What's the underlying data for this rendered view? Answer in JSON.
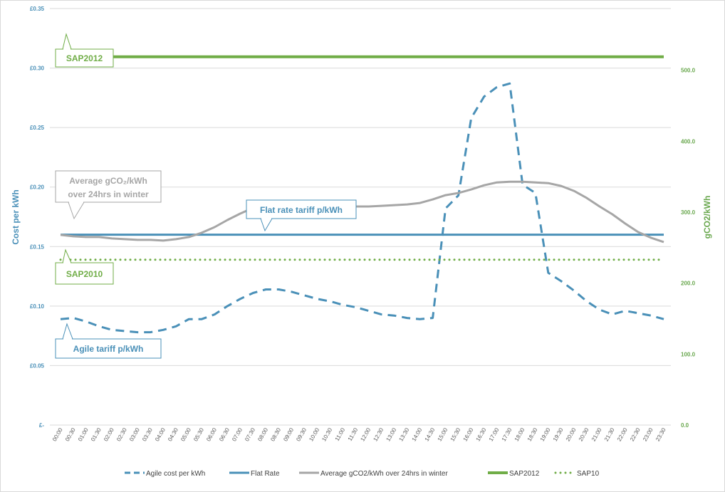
{
  "chart_data": {
    "type": "line",
    "title": "",
    "ylabel": "Cost per kWh",
    "y2label": "gCO2/kWh",
    "ylim": [
      0,
      0.35
    ],
    "y2lim": [
      0,
      587
    ],
    "y_ticks": [
      "£-",
      "£0.05",
      "£0.10",
      "£0.15",
      "£0.20",
      "£0.25",
      "£0.30",
      "£0.35"
    ],
    "y2_ticks": [
      "0.0",
      "100.0",
      "200.0",
      "300.0",
      "400.0",
      "500.0"
    ],
    "x": [
      "00:00",
      "00:30",
      "01:00",
      "01:30",
      "02:00",
      "02:30",
      "03:00",
      "03:30",
      "04:00",
      "04:30",
      "05:00",
      "05:30",
      "06:00",
      "06:30",
      "07:00",
      "07:30",
      "08:00",
      "08:30",
      "09:00",
      "09:30",
      "10:00",
      "10:30",
      "11:00",
      "11:30",
      "12:00",
      "12:30",
      "13:00",
      "13:30",
      "14:00",
      "14:30",
      "15:00",
      "15:30",
      "16:00",
      "16:30",
      "17:00",
      "17:30",
      "18:00",
      "18:30",
      "19:00",
      "19:30",
      "20:00",
      "20:30",
      "21:00",
      "21:30",
      "22:00",
      "22:30",
      "23:00",
      "23:30"
    ],
    "series": [
      {
        "name": "Agile cost per kWh",
        "axis": "left",
        "color": "#4a90b8",
        "style": "dashed",
        "values": [
          0.089,
          0.09,
          0.087,
          0.083,
          0.08,
          0.079,
          0.078,
          0.078,
          0.08,
          0.083,
          0.089,
          0.089,
          0.093,
          0.1,
          0.106,
          0.111,
          0.114,
          0.114,
          0.112,
          0.109,
          0.106,
          0.104,
          0.101,
          0.099,
          0.096,
          0.093,
          0.092,
          0.09,
          0.089,
          0.09,
          0.182,
          0.193,
          0.258,
          0.276,
          0.284,
          0.287,
          0.202,
          0.195,
          0.128,
          0.121,
          0.113,
          0.104,
          0.097,
          0.093,
          0.096,
          0.094,
          0.092,
          0.089
        ]
      },
      {
        "name": "Flat Rate",
        "axis": "left",
        "color": "#4a90b8",
        "style": "solid",
        "values": [
          0.16,
          0.16,
          0.16,
          0.16,
          0.16,
          0.16,
          0.16,
          0.16,
          0.16,
          0.16,
          0.16,
          0.16,
          0.16,
          0.16,
          0.16,
          0.16,
          0.16,
          0.16,
          0.16,
          0.16,
          0.16,
          0.16,
          0.16,
          0.16,
          0.16,
          0.16,
          0.16,
          0.16,
          0.16,
          0.16,
          0.16,
          0.16,
          0.16,
          0.16,
          0.16,
          0.16,
          0.16,
          0.16,
          0.16,
          0.16,
          0.16,
          0.16,
          0.16,
          0.16,
          0.16,
          0.16,
          0.16,
          0.16
        ]
      },
      {
        "name": "Average gCO2/kWh over 24hrs in winter",
        "axis": "right",
        "color": "#a6a6a6",
        "style": "solid",
        "values": [
          268,
          266,
          265,
          265,
          263,
          262,
          261,
          261,
          260,
          262,
          265,
          271,
          279,
          289,
          298,
          306,
          311,
          312,
          313,
          312,
          311,
          310,
          309,
          308,
          308,
          309,
          310,
          311,
          313,
          318,
          324,
          327,
          332,
          338,
          342,
          343,
          343,
          342,
          341,
          337,
          330,
          320,
          308,
          297,
          284,
          272,
          264,
          258
        ]
      },
      {
        "name": "SAP2012",
        "axis": "right",
        "color": "#70ad47",
        "style": "solid-thick",
        "values": [
          519,
          519,
          519,
          519,
          519,
          519,
          519,
          519,
          519,
          519,
          519,
          519,
          519,
          519,
          519,
          519,
          519,
          519,
          519,
          519,
          519,
          519,
          519,
          519,
          519,
          519,
          519,
          519,
          519,
          519,
          519,
          519,
          519,
          519,
          519,
          519,
          519,
          519,
          519,
          519,
          519,
          519,
          519,
          519,
          519,
          519,
          519,
          519
        ]
      },
      {
        "name": "SAP10",
        "axis": "right",
        "color": "#70ad47",
        "style": "dotted",
        "values": [
          233,
          233,
          233,
          233,
          233,
          233,
          233,
          233,
          233,
          233,
          233,
          233,
          233,
          233,
          233,
          233,
          233,
          233,
          233,
          233,
          233,
          233,
          233,
          233,
          233,
          233,
          233,
          233,
          233,
          233,
          233,
          233,
          233,
          233,
          233,
          233,
          233,
          233,
          233,
          233,
          233,
          233,
          233,
          233,
          233,
          233,
          233,
          233
        ]
      }
    ],
    "annotations": [
      {
        "id": "sap2012",
        "text": "SAP2012",
        "color": "#70ad47"
      },
      {
        "id": "avg",
        "text_line1": "Average gCO₂/kWh",
        "text_line2": "over 24hrs in winter",
        "color": "#a6a6a6"
      },
      {
        "id": "flat",
        "text": "Flat rate tariff p/kWh",
        "color": "#4a90b8"
      },
      {
        "id": "sap2010",
        "text": "SAP2010",
        "color": "#70ad47"
      },
      {
        "id": "agile",
        "text": "Agile tariff p/kWh",
        "color": "#4a90b8"
      }
    ],
    "grid": true,
    "legend_position": "bottom"
  }
}
